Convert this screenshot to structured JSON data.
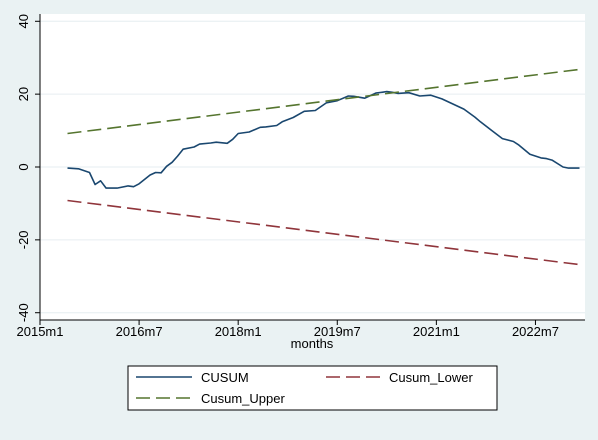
{
  "chart_data": {
    "type": "line",
    "title": "",
    "xlabel": "months",
    "ylabel": "",
    "xlim": [
      "2015m1",
      "2023m4"
    ],
    "ylim": [
      -42,
      42
    ],
    "x_ticks": [
      "2015m1",
      "2016m7",
      "2018m1",
      "2019m7",
      "2021m1",
      "2022m7"
    ],
    "y_ticks": [
      -40,
      -20,
      0,
      20,
      40
    ],
    "y_tick_labels": [
      "-40",
      "-20",
      "0",
      "20",
      "40"
    ],
    "grid": "horizontal",
    "legend_position": "bottom",
    "series": [
      {
        "name": "CUSUM",
        "color": "#1a476f",
        "dash": "solid",
        "points": [
          [
            "2015m6",
            -0.3
          ],
          [
            "2015m8",
            -0.5
          ],
          [
            "2015m10",
            -1.5
          ],
          [
            "2015m11",
            -4.8
          ],
          [
            "2015m12",
            -3.8
          ],
          [
            "2016m1",
            -5.8
          ],
          [
            "2016m3",
            -5.8
          ],
          [
            "2016m5",
            -5.2
          ],
          [
            "2016m6",
            -5.4
          ],
          [
            "2016m7",
            -4.6
          ],
          [
            "2016m9",
            -2.2
          ],
          [
            "2016m10",
            -1.5
          ],
          [
            "2016m11",
            -1.6
          ],
          [
            "2016m12",
            0.2
          ],
          [
            "2017m1",
            1.3
          ],
          [
            "2017m2",
            3.0
          ],
          [
            "2017m3",
            4.9
          ],
          [
            "2017m5",
            5.5
          ],
          [
            "2017m6",
            6.3
          ],
          [
            "2017m8",
            6.6
          ],
          [
            "2017m9",
            6.8
          ],
          [
            "2017m11",
            6.5
          ],
          [
            "2017m12",
            7.6
          ],
          [
            "2018m1",
            9.2
          ],
          [
            "2018m3",
            9.6
          ],
          [
            "2018m5",
            10.9
          ],
          [
            "2018m6",
            11.0
          ],
          [
            "2018m8",
            11.4
          ],
          [
            "2018m9",
            12.4
          ],
          [
            "2018m11",
            13.6
          ],
          [
            "2019m1",
            15.3
          ],
          [
            "2019m3",
            15.5
          ],
          [
            "2019m5",
            17.6
          ],
          [
            "2019m7",
            18.2
          ],
          [
            "2019m9",
            19.5
          ],
          [
            "2019m10",
            19.4
          ],
          [
            "2019m12",
            18.9
          ],
          [
            "2020m2",
            20.3
          ],
          [
            "2020m4",
            20.7
          ],
          [
            "2020m5",
            20.5
          ],
          [
            "2020m6",
            20.2
          ],
          [
            "2020m8",
            20.4
          ],
          [
            "2020m10",
            19.5
          ],
          [
            "2020m12",
            19.7
          ],
          [
            "2021m2",
            18.7
          ],
          [
            "2021m4",
            17.3
          ],
          [
            "2021m6",
            15.9
          ],
          [
            "2021m8",
            13.7
          ],
          [
            "2021m9",
            12.4
          ],
          [
            "2021m11",
            10.1
          ],
          [
            "2022m1",
            7.8
          ],
          [
            "2022m3",
            7.0
          ],
          [
            "2022m4",
            6.0
          ],
          [
            "2022m6",
            3.5
          ],
          [
            "2022m8",
            2.5
          ],
          [
            "2022m9",
            2.3
          ],
          [
            "2022m10",
            1.9
          ],
          [
            "2022m12",
            0.0
          ],
          [
            "2023m1",
            -0.3
          ],
          [
            "2023m3",
            -0.3
          ]
        ]
      },
      {
        "name": "Cusum_Lower",
        "color": "#90353b",
        "dash": "long-dash",
        "points": [
          [
            "2015m6",
            -9.2
          ],
          [
            "2023m3",
            -26.8
          ]
        ]
      },
      {
        "name": "Cusum_Upper",
        "color": "#55752f",
        "dash": "long-dash",
        "points": [
          [
            "2015m6",
            9.2
          ],
          [
            "2023m3",
            26.8
          ]
        ]
      }
    ]
  },
  "legend": {
    "items": [
      {
        "label": "CUSUM",
        "color": "#1a476f",
        "dash": "solid"
      },
      {
        "label": "Cusum_Lower",
        "color": "#90353b",
        "dash": "long-dash"
      },
      {
        "label": "Cusum_Upper",
        "color": "#55752f",
        "dash": "long-dash"
      }
    ]
  }
}
